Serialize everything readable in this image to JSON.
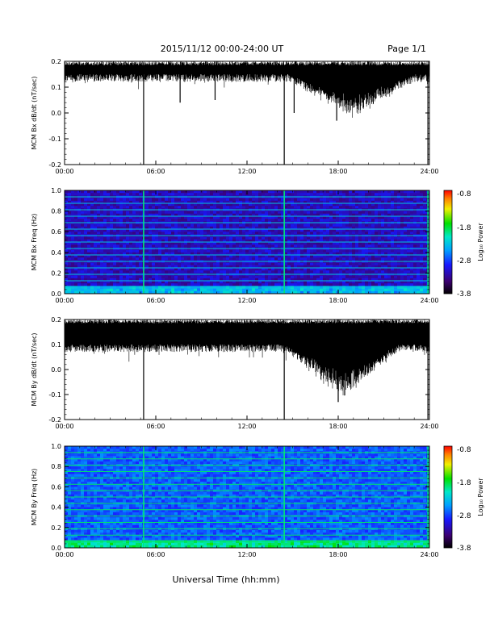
{
  "header": {
    "title": "2015/11/12  00:00-24:00 UT",
    "page": "Page 1/1"
  },
  "footer": {
    "xlabel": "Universal Time (hh:mm)"
  },
  "colorbar": {
    "label": "Log₁₀ Power",
    "ticks": [
      "-0.8",
      "-1.8",
      "-2.8",
      "-3.8"
    ],
    "range": [
      -3.8,
      -0.8
    ]
  },
  "chart_data": [
    {
      "type": "line",
      "id": "bx-wave",
      "ylabel": "MCM Bx dB/dt (nT/sec)",
      "xlabel": "",
      "xlim": [
        0,
        24
      ],
      "ylim": [
        -0.2,
        0.2
      ],
      "xticks": [
        "00:00",
        "06:00",
        "12:00",
        "18:00",
        "24:00"
      ],
      "yticks": [
        "0.2",
        "0.1",
        "0.0",
        "-0.1",
        "-0.2"
      ],
      "baseline": [
        0.15,
        0.2
      ],
      "dips": [
        {
          "t": 5.2,
          "y": -0.2
        },
        {
          "t": 7.6,
          "y": 0.04
        },
        {
          "t": 9.9,
          "y": 0.05
        },
        {
          "t": 14.45,
          "y": -0.2
        },
        {
          "t": 15.1,
          "y": 0.0
        },
        {
          "t": 17.9,
          "y": -0.03
        },
        {
          "t": 23.9,
          "y": -0.2
        }
      ],
      "disturbed_interval": [
        14.8,
        23.0
      ],
      "disturbed_min": 0.0
    },
    {
      "type": "heatmap",
      "id": "bx-spec",
      "ylabel": "MCM Bx Freq (Hz)",
      "xlim": [
        0,
        24
      ],
      "ylim": [
        0.0,
        1.0
      ],
      "xticks": [
        "00:00",
        "06:00",
        "12:00",
        "18:00",
        "24:00"
      ],
      "yticks": [
        "1.0",
        "0.8",
        "0.6",
        "0.4",
        "0.2",
        "0.0"
      ],
      "harmonic_interval_hz": 0.0625,
      "broadband_times": [
        5.2,
        14.45,
        23.9
      ],
      "base_level": "low"
    },
    {
      "type": "line",
      "id": "by-wave",
      "ylabel": "MCM By dB/dt (nT/sec)",
      "xlabel": "",
      "xlim": [
        0,
        24
      ],
      "ylim": [
        -0.2,
        0.2
      ],
      "xticks": [
        "00:00",
        "06:00",
        "12:00",
        "18:00",
        "24:00"
      ],
      "yticks": [
        "0.2",
        "0.1",
        "0.0",
        "-0.1",
        "-0.2"
      ],
      "baseline": [
        0.1,
        0.2
      ],
      "dips": [
        {
          "t": 5.2,
          "y": -0.2
        },
        {
          "t": 14.45,
          "y": -0.2
        },
        {
          "t": 18.0,
          "y": -0.13
        },
        {
          "t": 23.9,
          "y": -0.2
        }
      ],
      "disturbed_interval": [
        14.6,
        22.0
      ],
      "disturbed_min": -0.1
    },
    {
      "type": "heatmap",
      "id": "by-spec",
      "ylabel": "MCM By Freq (Hz)",
      "xlim": [
        0,
        24
      ],
      "ylim": [
        0.0,
        1.0
      ],
      "xticks": [
        "00:00",
        "06:00",
        "12:00",
        "18:00",
        "24:00"
      ],
      "yticks": [
        "1.0",
        "0.8",
        "0.6",
        "0.4",
        "0.2",
        "0.0"
      ],
      "harmonic_interval_hz": 0.0625,
      "broadband_times": [
        5.2,
        14.45,
        23.9
      ],
      "base_level": "medium"
    }
  ]
}
